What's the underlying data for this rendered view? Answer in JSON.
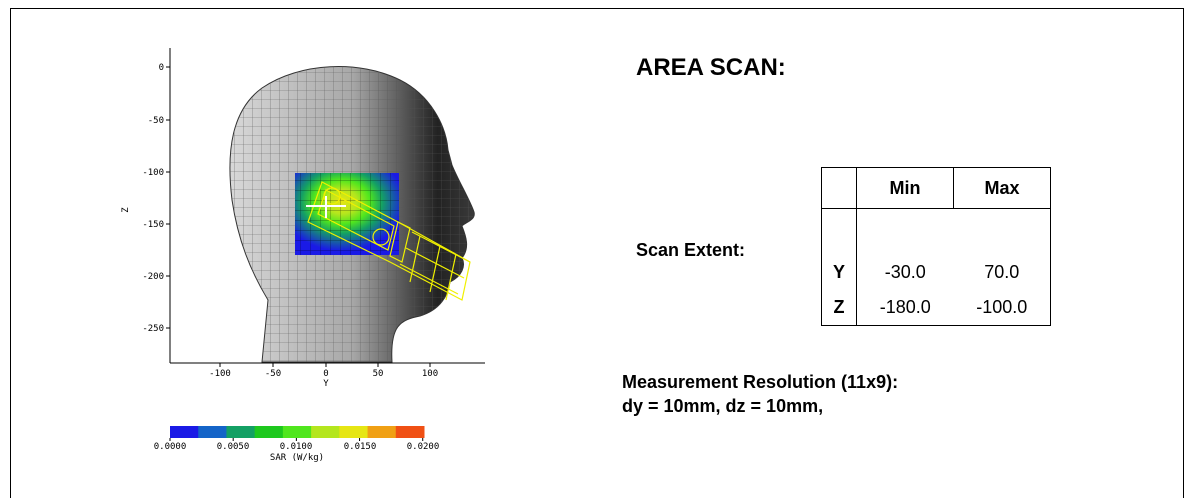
{
  "title": "AREA SCAN:",
  "plot": {
    "x_label": "Y",
    "z_label": "Z",
    "x_ticks": [
      "-100",
      "-50",
      "0",
      "50",
      "100"
    ],
    "z_ticks": [
      "0",
      "-50",
      "-100",
      "-150",
      "-200",
      "-250"
    ]
  },
  "colorbar": {
    "label": "SAR (W/kg)",
    "ticks": [
      "0.0000",
      "0.0050",
      "0.0100",
      "0.0150",
      "0.0200"
    ],
    "colors": [
      "#1a1ae6",
      "#1464c8",
      "#14a064",
      "#1ec81e",
      "#50e61e",
      "#b4e61e",
      "#e6e614",
      "#f0a014",
      "#f05014"
    ]
  },
  "table": {
    "col_min": "Min",
    "col_max": "Max",
    "row_y_label": "Y",
    "row_z_label": "Z",
    "y_min": "-30.0",
    "y_max": "70.0",
    "z_min": "-180.0",
    "z_max": "-100.0"
  },
  "scan_extent_label": "Scan Extent:",
  "resolution_line1": "Measurement Resolution (11x9):",
  "resolution_line2": "dy = 10mm, dz = 10mm,"
}
